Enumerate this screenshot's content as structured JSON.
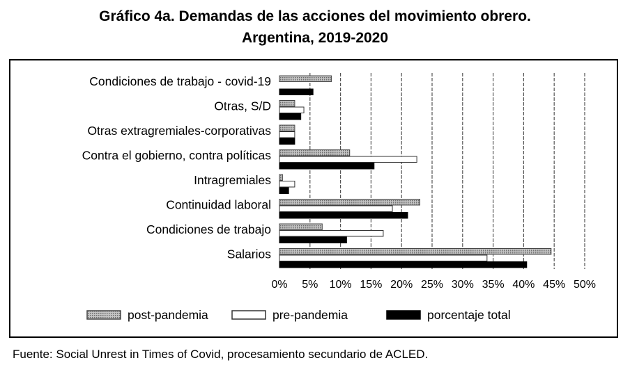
{
  "title_line1": "Gráfico 4a. Demandas de las acciones del movimiento obrero.",
  "title_line2": "Argentina, 2019-2020",
  "source": "Fuente: Social Unrest in Times of Covid, procesamiento secundario de ACLED.",
  "chart_data": {
    "type": "bar",
    "orientation": "horizontal",
    "title": "Gráfico 4a. Demandas de las acciones del movimiento obrero. Argentina, 2019-2020",
    "categories": [
      "Condiciones de trabajo - covid-19",
      "Otras, S/D",
      "Otras extragremiales-corporativas",
      "Contra el gobierno, contra políticas",
      "Intragremiales",
      "Continuidad laboral",
      "Condiciones de trabajo",
      "Salarios"
    ],
    "series": [
      {
        "name": "post-pandemia",
        "values": [
          8.5,
          2.5,
          2.5,
          11.5,
          0.5,
          23,
          7,
          44.5
        ]
      },
      {
        "name": "pre-pandemia",
        "values": [
          0,
          4,
          2.5,
          22.5,
          2.5,
          18.5,
          17,
          34
        ]
      },
      {
        "name": "porcentaje total",
        "values": [
          5.5,
          3.5,
          2.5,
          15.5,
          1.5,
          21,
          11,
          40.5
        ]
      }
    ],
    "x_ticks": [
      "0%",
      "5%",
      "10%",
      "15%",
      "20%",
      "25%",
      "30%",
      "35%",
      "40%",
      "45%",
      "50%"
    ],
    "xlim": [
      0,
      50
    ],
    "grid": "vertical dashed",
    "legend_position": "bottom",
    "colors": {
      "post-pandemia": "#a8a8a8",
      "pre-pandemia": "#ffffff",
      "porcentaje total": "#000000"
    }
  }
}
